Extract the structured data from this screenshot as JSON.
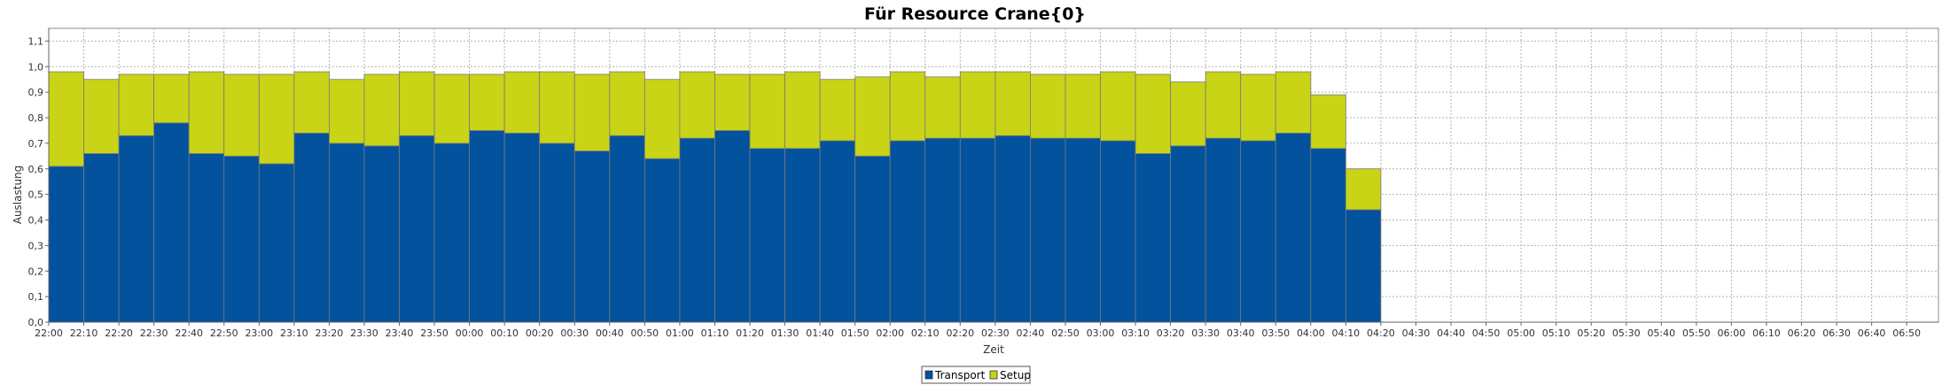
{
  "chart_data": {
    "type": "bar",
    "stacked": true,
    "title": "Für Resource Crane{0}",
    "xlabel": "Zeit",
    "ylabel": "Auslastung",
    "ylim": [
      0,
      1.15
    ],
    "yticks": [
      "0,0",
      "0,1",
      "0,2",
      "0,3",
      "0,4",
      "0,5",
      "0,6",
      "0,7",
      "0,8",
      "0,9",
      "1,0",
      "1,1"
    ],
    "ytick_values": [
      0,
      0.1,
      0.2,
      0.3,
      0.4,
      0.5,
      0.6,
      0.7,
      0.8,
      0.9,
      1.0,
      1.1
    ],
    "grid": true,
    "legend_position": "bottom-center",
    "x_tick_labels": [
      "22:00",
      "22:10",
      "22:20",
      "22:30",
      "22:40",
      "22:50",
      "23:00",
      "23:10",
      "23:20",
      "23:30",
      "23:40",
      "23:50",
      "00:00",
      "00:10",
      "00:20",
      "00:30",
      "00:40",
      "00:50",
      "01:00",
      "01:10",
      "01:20",
      "01:30",
      "01:40",
      "01:50",
      "02:00",
      "02:10",
      "02:20",
      "02:30",
      "02:40",
      "02:50",
      "03:00",
      "03:10",
      "03:20",
      "03:30",
      "03:40",
      "03:50",
      "04:00",
      "04:10",
      "04:20",
      "04:30",
      "04:40",
      "04:50",
      "05:00",
      "05:10",
      "05:20",
      "05:30",
      "05:40",
      "05:50",
      "06:00",
      "06:10",
      "06:20",
      "06:30",
      "06:40",
      "06:50"
    ],
    "series": [
      {
        "name": "Transport",
        "color": "#02529e",
        "values": [
          0.61,
          0.66,
          0.73,
          0.78,
          0.66,
          0.65,
          0.62,
          0.74,
          0.7,
          0.69,
          0.73,
          0.7,
          0.75,
          0.74,
          0.7,
          0.67,
          0.73,
          0.64,
          0.72,
          0.75,
          0.68,
          0.68,
          0.71,
          0.65,
          0.71,
          0.72,
          0.72,
          0.73,
          0.72,
          0.72,
          0.71,
          0.66,
          0.69,
          0.72,
          0.71,
          0.74,
          0.68,
          0.44
        ]
      },
      {
        "name": "Setup",
        "color": "#c8d415",
        "values": [
          0.37,
          0.29,
          0.24,
          0.19,
          0.32,
          0.32,
          0.35,
          0.24,
          0.25,
          0.28,
          0.25,
          0.27,
          0.22,
          0.24,
          0.28,
          0.3,
          0.25,
          0.31,
          0.26,
          0.22,
          0.29,
          0.3,
          0.24,
          0.31,
          0.27,
          0.24,
          0.26,
          0.25,
          0.25,
          0.25,
          0.27,
          0.31,
          0.25,
          0.26,
          0.26,
          0.24,
          0.21,
          0.16
        ]
      }
    ]
  }
}
